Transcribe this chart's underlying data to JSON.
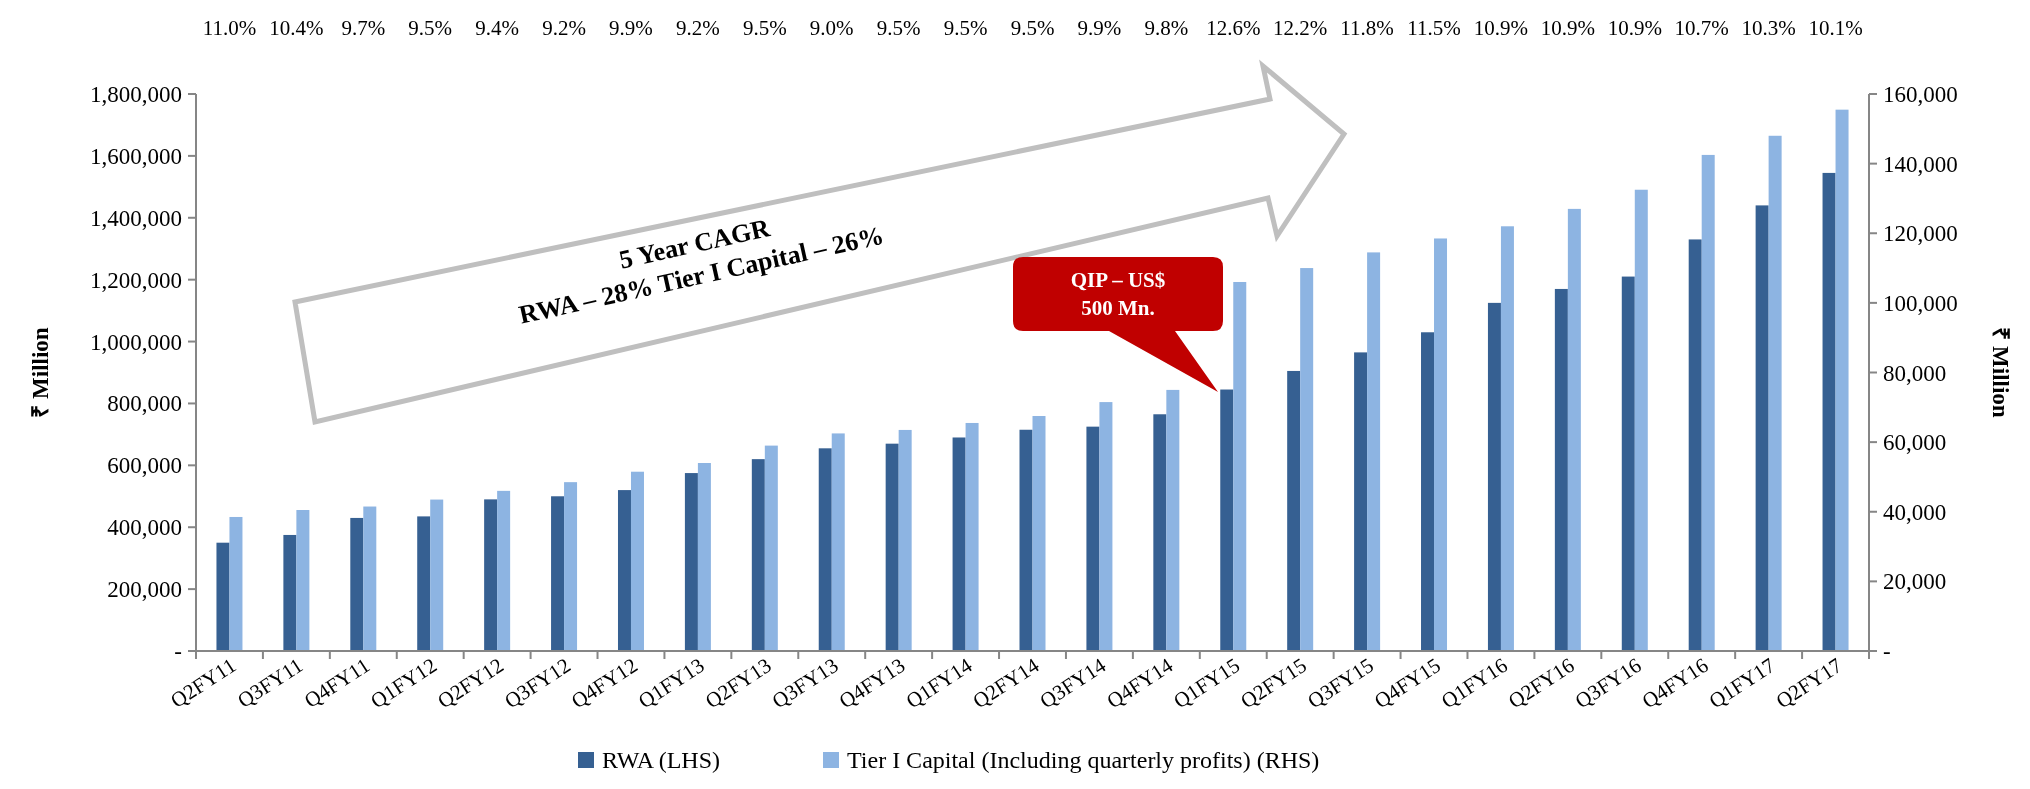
{
  "chart_data": {
    "type": "bar",
    "categories": [
      "Q2FY11",
      "Q3FY11",
      "Q4FY11",
      "Q1FY12",
      "Q2FY12",
      "Q3FY12",
      "Q4FY12",
      "Q1FY13",
      "Q2FY13",
      "Q3FY13",
      "Q4FY13",
      "Q1FY14",
      "Q2FY14",
      "Q3FY14",
      "Q4FY14",
      "Q1FY15",
      "Q2FY15",
      "Q3FY15",
      "Q4FY15",
      "Q1FY16",
      "Q2FY16",
      "Q3FY16",
      "Q4FY16",
      "Q1FY17",
      "Q2FY17"
    ],
    "series": [
      {
        "name": "RWA (LHS)",
        "color": "#366092",
        "values": [
          350000,
          375000,
          430000,
          435000,
          490000,
          500000,
          520000,
          575000,
          620000,
          655000,
          670000,
          690000,
          715000,
          725000,
          765000,
          845000,
          905000,
          965000,
          1030000,
          1125000,
          1170000,
          1210000,
          1330000,
          1440000,
          1545000
        ]
      },
      {
        "name": "Tier I Capital (Including quarterly profits) (RHS)",
        "color": "#8db4e2",
        "axis": "y2",
        "values": [
          38500,
          40500,
          41500,
          43500,
          46000,
          48500,
          51500,
          54000,
          59000,
          62500,
          63500,
          65500,
          67500,
          71500,
          75000,
          106000,
          110000,
          114500,
          118500,
          122000,
          127000,
          132500,
          142500,
          148000,
          155500
        ]
      }
    ],
    "ylabel": "₹ Million",
    "y2label": "₹ Million",
    "ylim": [
      0,
      1800000
    ],
    "yticks": [
      {
        "value": 0,
        "label": "-"
      },
      {
        "value": 200000,
        "label": "200,000"
      },
      {
        "value": 400000,
        "label": "400,000"
      },
      {
        "value": 600000,
        "label": "600,000"
      },
      {
        "value": 800000,
        "label": "800,000"
      },
      {
        "value": 1000000,
        "label": "1,000,000"
      },
      {
        "value": 1200000,
        "label": "1,200,000"
      },
      {
        "value": 1400000,
        "label": "1,400,000"
      },
      {
        "value": 1600000,
        "label": "1,600,000"
      },
      {
        "value": 1800000,
        "label": "1,800,000"
      }
    ],
    "y2lim": [
      0,
      160000
    ],
    "y2ticks": [
      {
        "value": 0,
        "label": "-"
      },
      {
        "value": 20000,
        "label": "20,000"
      },
      {
        "value": 40000,
        "label": "40,000"
      },
      {
        "value": 60000,
        "label": "60,000"
      },
      {
        "value": 80000,
        "label": "80,000"
      },
      {
        "value": 100000,
        "label": "100,000"
      },
      {
        "value": 120000,
        "label": "120,000"
      },
      {
        "value": 140000,
        "label": "140,000"
      },
      {
        "value": 160000,
        "label": "160,000"
      }
    ],
    "grid": false,
    "legend": "bottom",
    "annotations": [
      "5 Year CAGR",
      "RWA – 28% Tier I Capital – 26%",
      "QIP – US$ 500 Mn.",
      "11.0%",
      "10.4%",
      "9.7%",
      "9.5%",
      "9.4%",
      "9.2%",
      "9.9%",
      "9.2%",
      "9.5%",
      "9.0%",
      "9.5%",
      "9.5%",
      "9.5%",
      "9.9%",
      "9.8%",
      "12.6%",
      "12.2%",
      "11.8%",
      "11.5%",
      "10.9%",
      "10.9%",
      "10.9%",
      "10.7%",
      "10.3%",
      "10.1%"
    ]
  }
}
